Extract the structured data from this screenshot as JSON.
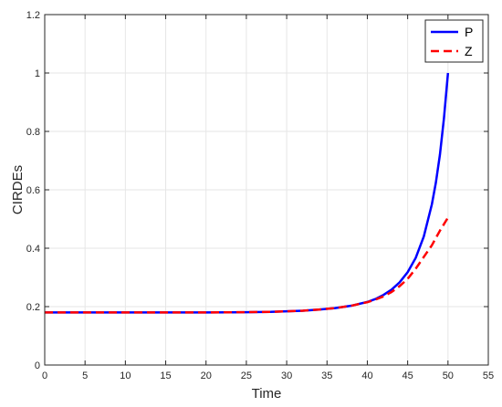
{
  "chart_data": {
    "type": "line",
    "title": "",
    "xlabel": "Time",
    "ylabel": "CIRDEs",
    "xlim": [
      0,
      55
    ],
    "ylim": [
      0,
      1.2
    ],
    "xticks": [
      0,
      5,
      10,
      15,
      20,
      25,
      30,
      35,
      40,
      45,
      50,
      55
    ],
    "yticks": [
      0,
      0.2,
      0.4,
      0.6,
      0.8,
      1,
      1.2
    ],
    "grid": true,
    "legend_position": "top-right",
    "series": [
      {
        "name": "P",
        "color": "#0000ff",
        "style": "solid",
        "x": [
          0,
          5,
          10,
          15,
          20,
          25,
          28,
          30,
          32,
          34,
          36,
          38,
          40,
          41,
          42,
          43,
          44,
          45,
          46,
          47,
          48,
          48.5,
          49,
          49.5,
          50
        ],
        "y": [
          0.18,
          0.18,
          0.18,
          0.18,
          0.18,
          0.181,
          0.182,
          0.184,
          0.186,
          0.19,
          0.195,
          0.203,
          0.216,
          0.226,
          0.24,
          0.258,
          0.283,
          0.318,
          0.367,
          0.44,
          0.55,
          0.625,
          0.72,
          0.845,
          1.0
        ]
      },
      {
        "name": "Z",
        "color": "#ff0000",
        "style": "dashed",
        "x": [
          0,
          5,
          10,
          15,
          20,
          25,
          28,
          30,
          32,
          34,
          36,
          38,
          40,
          41,
          42,
          43,
          44,
          45,
          46,
          47,
          48,
          49,
          50
        ],
        "y": [
          0.18,
          0.18,
          0.18,
          0.18,
          0.18,
          0.181,
          0.182,
          0.184,
          0.186,
          0.19,
          0.195,
          0.203,
          0.215,
          0.224,
          0.235,
          0.25,
          0.27,
          0.295,
          0.33,
          0.37,
          0.41,
          0.46,
          0.505
        ]
      }
    ]
  }
}
